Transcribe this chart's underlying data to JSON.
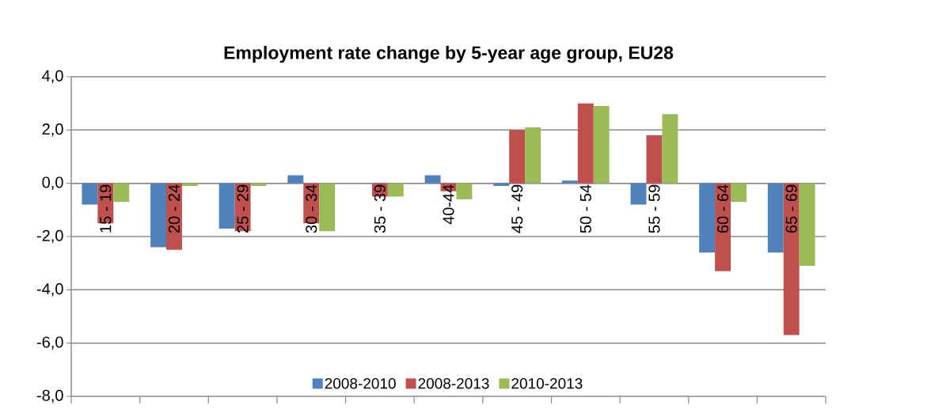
{
  "chart_data": {
    "type": "bar",
    "title": "Employment rate change by 5-year age group, EU28",
    "categories": [
      "15 - 19",
      "20 - 24",
      "25 - 29",
      "30 - 34",
      "35 - 39",
      "40-44",
      "45 - 49",
      "50 - 54",
      "55 - 59",
      "60 - 64",
      "65 - 69"
    ],
    "series": [
      {
        "name": "2008-2010",
        "color": "#4f81bd",
        "values": [
          -0.8,
          -2.4,
          -1.7,
          0.3,
          0.0,
          0.3,
          -0.1,
          0.1,
          -0.8,
          -2.6,
          -2.6
        ]
      },
      {
        "name": "2008-2013",
        "color": "#c0504d",
        "values": [
          -1.5,
          -2.5,
          -1.8,
          -1.5,
          -0.5,
          -0.3,
          2.0,
          3.0,
          1.8,
          -3.3,
          -5.7
        ]
      },
      {
        "name": "2010-2013",
        "color": "#9bbb59",
        "values": [
          -0.7,
          -0.1,
          -0.1,
          -1.8,
          -0.5,
          -0.6,
          2.1,
          2.9,
          2.6,
          -0.7,
          -3.1
        ]
      }
    ],
    "ylim": [
      -8,
      4
    ],
    "yticks": [
      {
        "value": -8,
        "label": "-8,0"
      },
      {
        "value": -6,
        "label": "-6,0"
      },
      {
        "value": -4,
        "label": "-4,0"
      },
      {
        "value": -2,
        "label": "-2,0"
      },
      {
        "value": 0,
        "label": "0,0"
      },
      {
        "value": 2,
        "label": "2,0"
      },
      {
        "value": 4,
        "label": "4,0"
      }
    ],
    "grid": "y",
    "legend": "bottom"
  }
}
